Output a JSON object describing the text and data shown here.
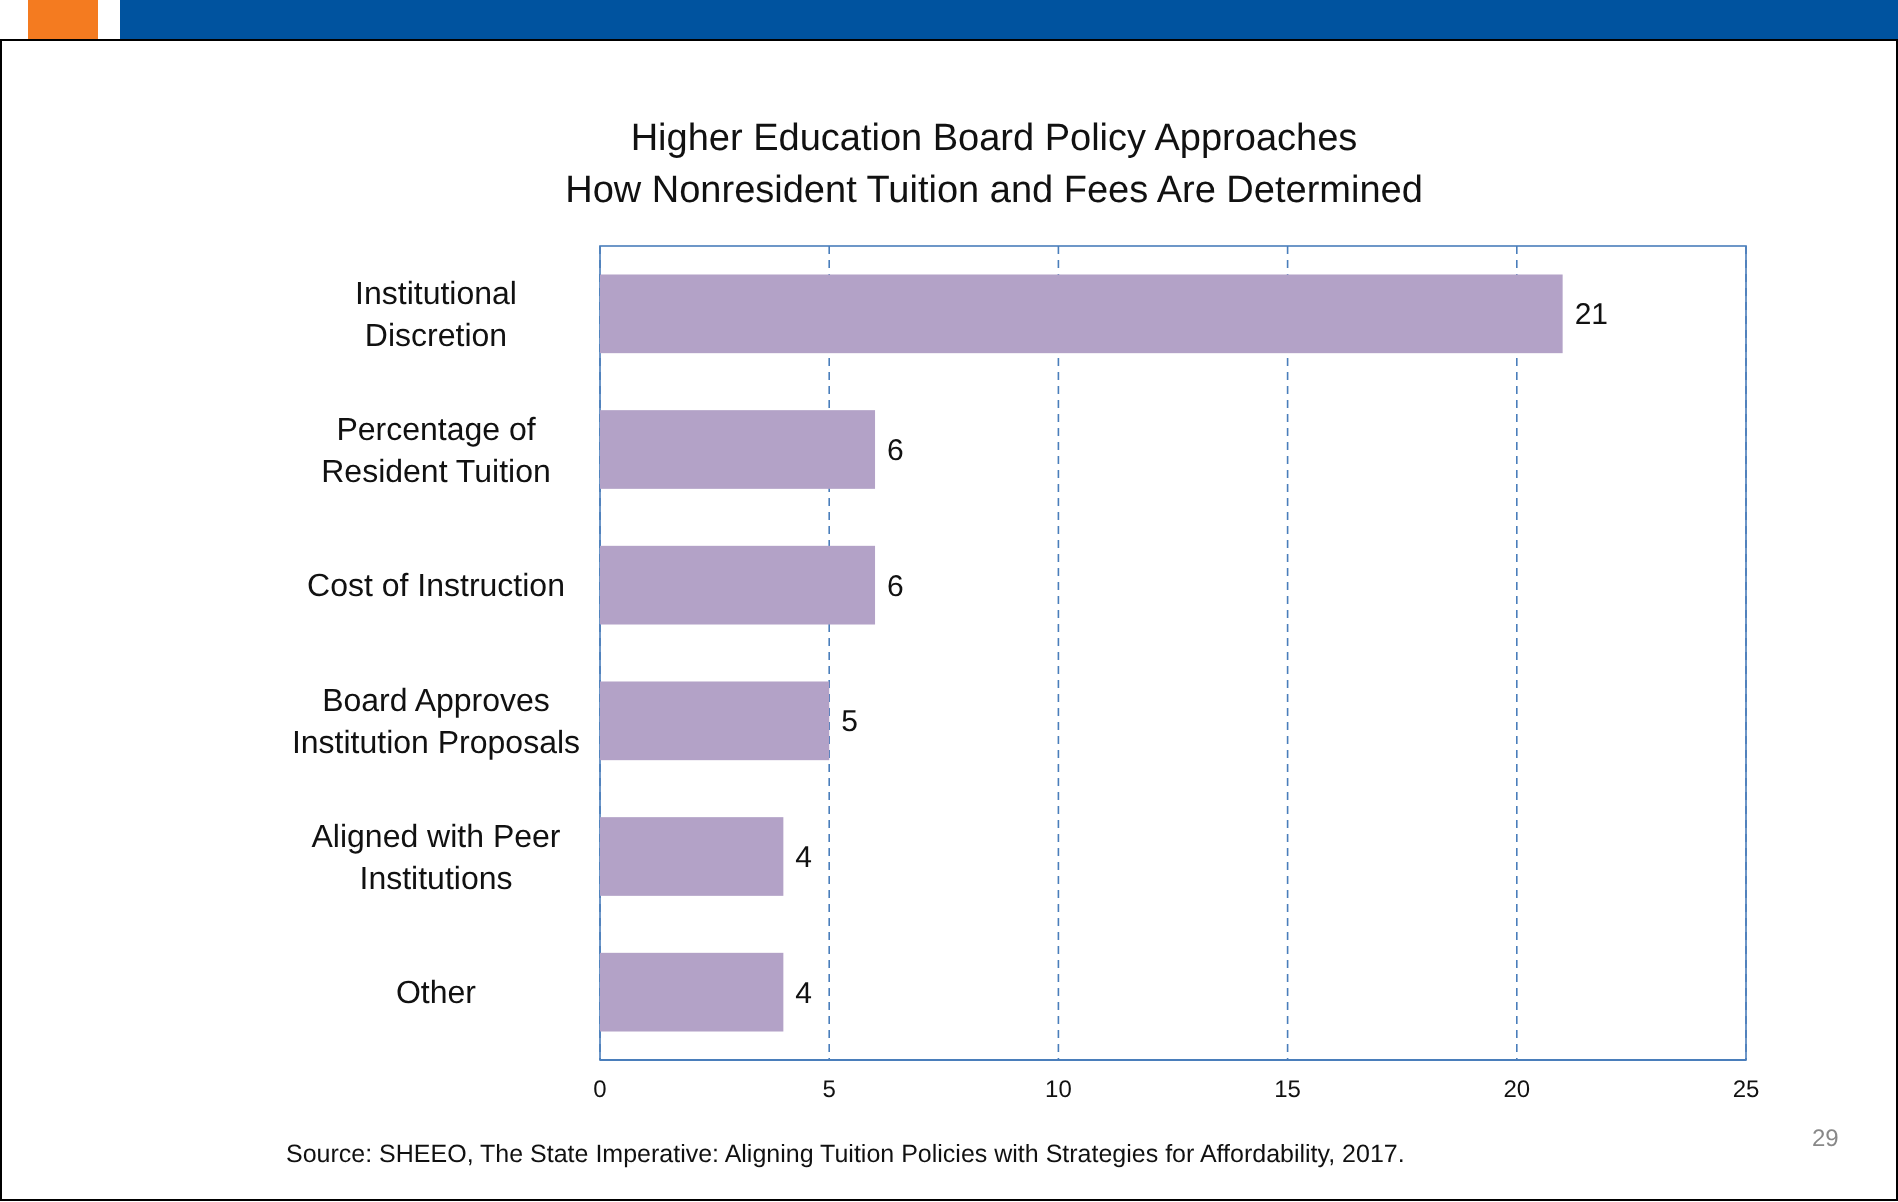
{
  "chart_data": {
    "type": "bar",
    "orientation": "horizontal",
    "title": "Higher Education Board Policy Approaches\nHow Nonresident Tuition and Fees Are Determined",
    "categories": [
      "Institutional\nDiscretion",
      "Percentage of\nResident Tuition",
      "Cost of Instruction",
      "Board Approves\nInstitution Proposals",
      "Aligned with Peer\nInstitutions",
      "Other"
    ],
    "values": [
      21,
      6,
      6,
      5,
      4,
      4
    ],
    "color": "#b3a2c7",
    "xlim": [
      0,
      25
    ],
    "xticks": [
      0,
      5,
      10,
      15,
      20,
      25
    ],
    "grid": "x",
    "data_labels": true,
    "annotations": [
      "Source:  SHEEO, The State Imperative: Aligning Tuition Policies with Strategies for Affordability, 2017.",
      "29"
    ]
  }
}
